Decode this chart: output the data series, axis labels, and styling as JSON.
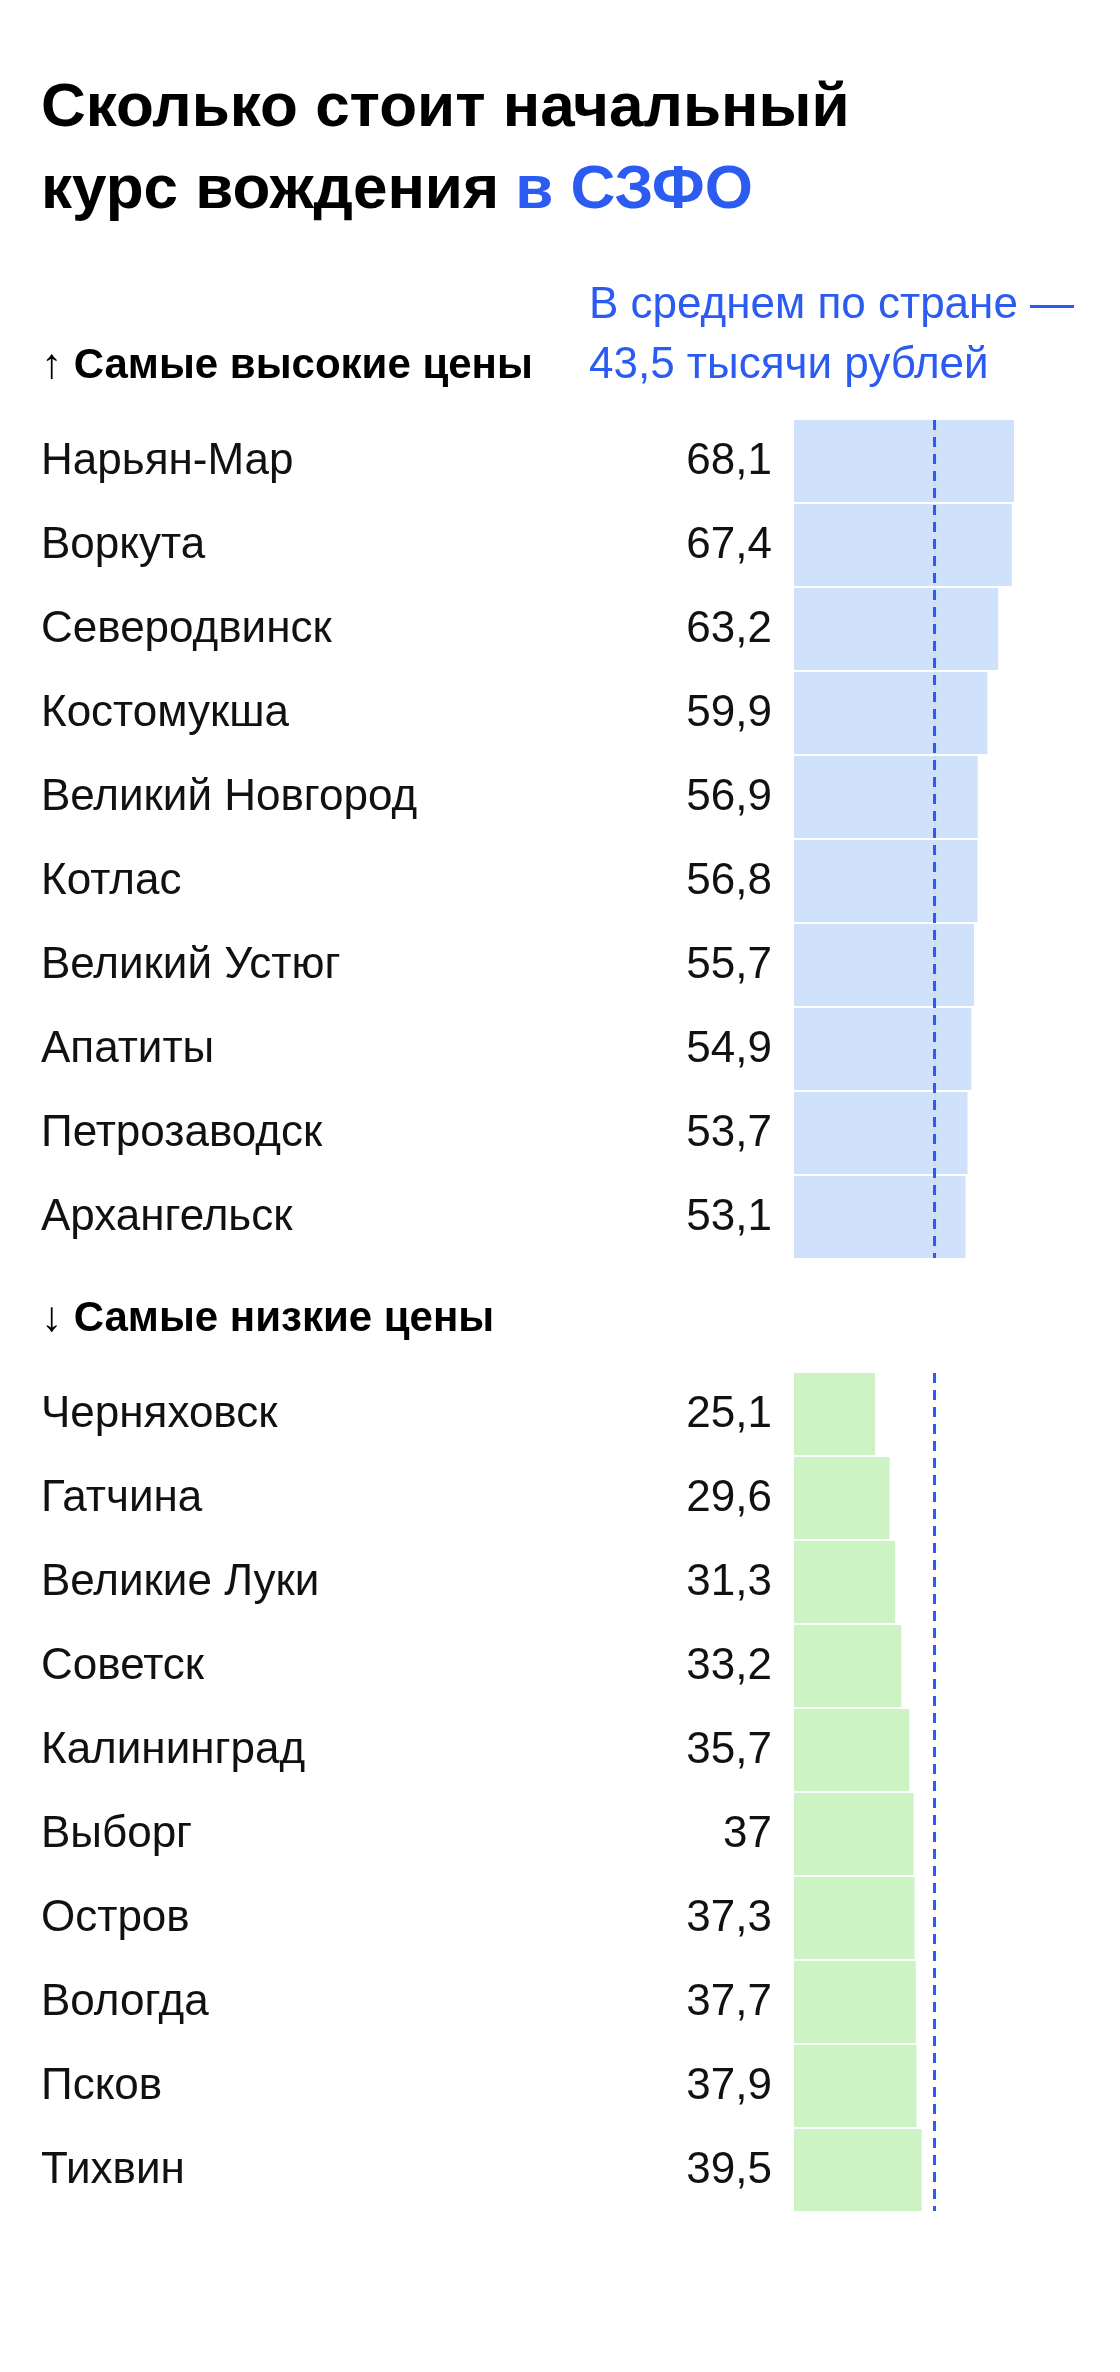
{
  "chart_data": [
    {
      "type": "bar",
      "orientation": "horizontal",
      "title": "Сколько стоит начальный курс вождения",
      "subtitle": "в СЗФО",
      "ylabel": "↑ Самые высокие цены",
      "categories": [
        "Нарьян-Мар",
        "Воркута",
        "Северодвинск",
        "Костомукша",
        "Великий Новгород",
        "Котлас",
        "Великий Устюг",
        "Апатиты",
        "Петрозаводск",
        "Архангельск"
      ],
      "values": [
        68.1,
        67.4,
        63.2,
        59.9,
        56.9,
        56.8,
        55.7,
        54.9,
        53.7,
        53.1
      ],
      "value_labels": [
        "68,1",
        "67,4",
        "63,2",
        "59,9",
        "56,9",
        "56,8",
        "55,7",
        "54,9",
        "53,7",
        "53,1"
      ],
      "color": "#d0e1fb",
      "ref_lines": [
        {
          "axis": "x",
          "value": 43.5,
          "label": "В среднем по стране — 43,5 тысячи рублей",
          "color": "#2b5bf0",
          "line_style": "dashed"
        }
      ]
    },
    {
      "type": "bar",
      "orientation": "horizontal",
      "ylabel": "↓ Самые низкие цены",
      "categories": [
        "Черняховск",
        "Гатчина",
        "Великие Луки",
        "Советск",
        "Калининград",
        "Выборг",
        "Остров",
        "Вологда",
        "Псков",
        "Тихвин"
      ],
      "values": [
        25.1,
        29.6,
        31.3,
        33.2,
        35.7,
        37,
        37.3,
        37.7,
        37.9,
        39.5
      ],
      "value_labels": [
        "25,1",
        "29,6",
        "31,3",
        "33,2",
        "35,7",
        "37",
        "37,3",
        "37,7",
        "37,9",
        "39,5"
      ],
      "color": "#cdf2c4",
      "ref_lines": [
        {
          "axis": "x",
          "value": 43.5,
          "color": "#2b5bf0",
          "line_style": "dashed"
        }
      ]
    }
  ]
}
